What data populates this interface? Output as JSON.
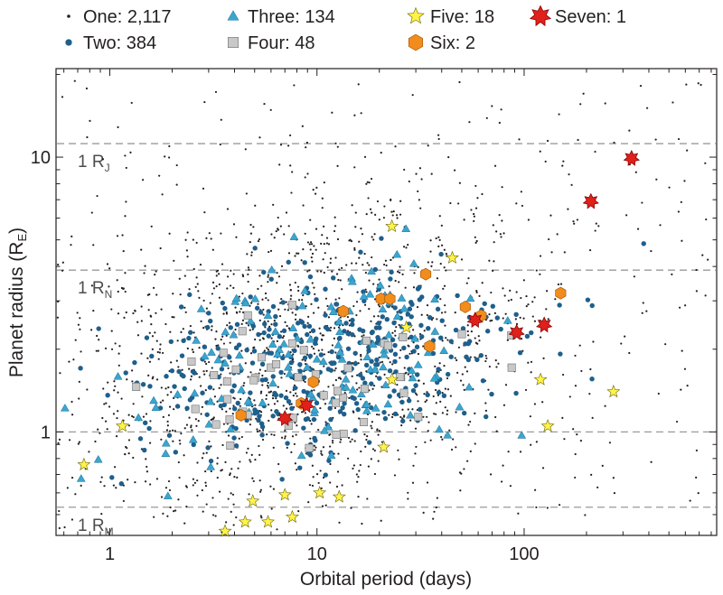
{
  "chart_data": {
    "type": "scatter",
    "xlabel": "Orbital period (days)",
    "ylabel": "Planet radius (R",
    "ylabel_subscript": "E",
    "ylabel_suffix": ")",
    "x_scale": "log",
    "y_scale": "log",
    "xlim": [
      0.55,
      850
    ],
    "ylim": [
      0.42,
      21
    ],
    "x_ticks": [
      {
        "value": 1,
        "label": "1"
      },
      {
        "value": 10,
        "label": "10"
      },
      {
        "value": 100,
        "label": "100"
      }
    ],
    "y_ticks": [
      {
        "value": 1,
        "label": "1"
      },
      {
        "value": 10,
        "label": "10"
      }
    ],
    "grid": false,
    "legend": {
      "position": "top",
      "columns": 4
    },
    "colors": {
      "one": "#231f20",
      "two": "#1f5f8b",
      "three": "#3aa6d0",
      "four": "#c8c8c8",
      "five": "#fff34a",
      "six": "#f28c1c",
      "seven": "#e0201b",
      "reference_line": "#9a9a9a",
      "axis": "#231f20"
    },
    "reference_lines": [
      {
        "y": 11.2,
        "label": "1 R",
        "subscript": "J"
      },
      {
        "y": 3.88,
        "label": "1 R",
        "subscript": "N"
      },
      {
        "y": 1.0,
        "label": "",
        "subscript": ""
      },
      {
        "y": 0.532,
        "label": "1 R",
        "subscript": "M"
      }
    ],
    "series": [
      {
        "key": "one",
        "name": "One: 2,117",
        "marker": "dot",
        "count": 2117,
        "cluster": {
          "center": [
            9,
            1.9
          ],
          "spread": [
            0.62,
            0.3
          ],
          "xrange": [
            0.56,
            800
          ],
          "yrange": [
            0.43,
            20
          ]
        }
      },
      {
        "key": "two",
        "name": "Two: 384",
        "marker": "circle",
        "count": 384,
        "cluster": {
          "center": [
            10,
            1.75
          ],
          "spread": [
            0.5,
            0.18
          ],
          "xrange": [
            0.57,
            700
          ],
          "yrange": [
            0.5,
            15
          ]
        }
      },
      {
        "key": "three",
        "name": "Three: 134",
        "marker": "triangle",
        "count": 134,
        "cluster": {
          "center": [
            9,
            1.75
          ],
          "spread": [
            0.48,
            0.17
          ],
          "xrange": [
            0.6,
            700
          ],
          "yrange": [
            0.5,
            14
          ]
        }
      },
      {
        "key": "four",
        "name": "Four: 48",
        "marker": "square",
        "count": 48,
        "cluster": {
          "center": [
            9,
            1.6
          ],
          "spread": [
            0.42,
            0.14
          ],
          "xrange": [
            0.7,
            300
          ],
          "yrange": [
            0.5,
            9
          ]
        }
      },
      {
        "key": "five",
        "name": "Five: 18",
        "marker": "star",
        "count": 18,
        "points": [
          [
            3.6,
            0.435
          ],
          [
            4.5,
            0.47
          ],
          [
            5.8,
            0.47
          ],
          [
            7.6,
            0.49
          ],
          [
            4.9,
            0.56
          ],
          [
            7.0,
            0.59
          ],
          [
            10.3,
            0.6
          ],
          [
            12.8,
            0.58
          ],
          [
            0.75,
            0.76
          ],
          [
            1.15,
            1.05
          ],
          [
            21,
            0.88
          ],
          [
            23,
            1.55
          ],
          [
            27,
            2.4
          ],
          [
            23,
            5.6
          ],
          [
            45,
            4.3
          ],
          [
            130,
            1.05
          ],
          [
            120,
            1.55
          ],
          [
            270,
            1.4
          ]
        ]
      },
      {
        "key": "six",
        "name": "Six: 2",
        "marker": "hexagon",
        "count": 2,
        "points": [
          [
            4.3,
            1.15
          ],
          [
            8.4,
            1.27
          ],
          [
            9.6,
            1.52
          ],
          [
            13.4,
            2.75
          ],
          [
            20.4,
            3.05
          ],
          [
            22.5,
            3.05
          ],
          [
            33.5,
            3.75
          ],
          [
            35.0,
            2.05
          ],
          [
            52,
            2.85
          ],
          [
            62,
            2.65
          ],
          [
            150,
            3.2
          ]
        ]
      },
      {
        "key": "seven",
        "name": "Seven: 1",
        "marker": "star7",
        "count": 1,
        "points": [
          [
            7.0,
            1.12
          ],
          [
            8.9,
            1.25
          ],
          [
            58,
            2.55
          ],
          [
            92,
            2.3
          ],
          [
            125,
            2.45
          ],
          [
            210,
            6.9
          ],
          [
            330,
            9.9
          ]
        ]
      }
    ]
  }
}
